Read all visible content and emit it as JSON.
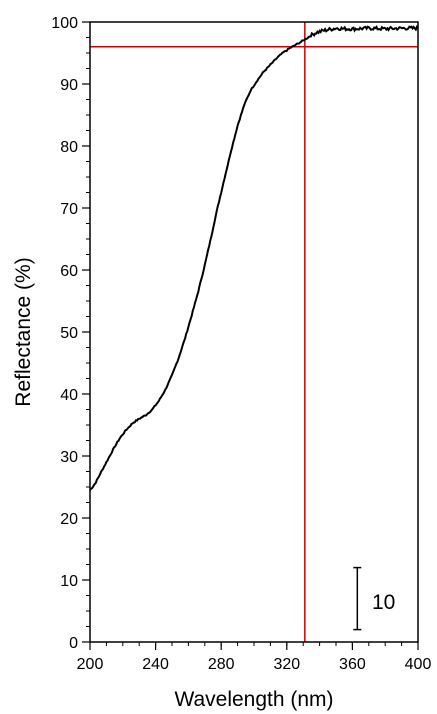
{
  "chart_data": {
    "type": "line",
    "title": "",
    "xlabel": "Wavelength (nm)",
    "ylabel": "Reflectance (%)",
    "xlim": [
      200,
      400
    ],
    "ylim": [
      0,
      100
    ],
    "xticks": [
      200,
      240,
      280,
      320,
      360,
      400
    ],
    "yticks": [
      0,
      10,
      20,
      30,
      40,
      50,
      60,
      70,
      80,
      90,
      100
    ],
    "x_minor_step": 10,
    "y_minor_step": 2.5,
    "grid": false,
    "line_color": "#000000",
    "reference_color": "#cc0000",
    "series": [
      {
        "x": [
          200,
          203,
          206,
          210,
          214,
          218,
          222,
          226,
          230,
          234,
          238,
          242,
          246,
          250,
          254,
          258,
          262,
          266,
          270,
          274,
          278,
          282,
          286,
          290,
          294,
          298,
          302,
          306,
          310,
          314,
          318,
          322,
          326,
          330,
          334,
          338,
          342,
          346,
          350,
          356,
          362,
          370,
          380,
          390,
          400
        ],
        "y": [
          24.5,
          25.5,
          27.0,
          29.0,
          31.0,
          32.8,
          34.2,
          35.3,
          36.0,
          36.6,
          37.5,
          38.9,
          40.7,
          43.0,
          45.8,
          49.0,
          52.7,
          56.5,
          60.8,
          65.5,
          70.3,
          74.8,
          79.2,
          83.3,
          86.6,
          89.0,
          90.6,
          92.0,
          93.1,
          94.2,
          95.1,
          95.8,
          96.4,
          97.0,
          97.7,
          98.3,
          98.6,
          98.8,
          99.0,
          98.9,
          98.9,
          99.0,
          98.9,
          99.0,
          99.0
        ]
      }
    ],
    "reference_lines": {
      "horizontal_y": 96,
      "vertical_x": 331
    },
    "scale_bar": {
      "label": "10",
      "length": 10,
      "x": 363,
      "y_from": 2,
      "y_to": 12
    }
  }
}
